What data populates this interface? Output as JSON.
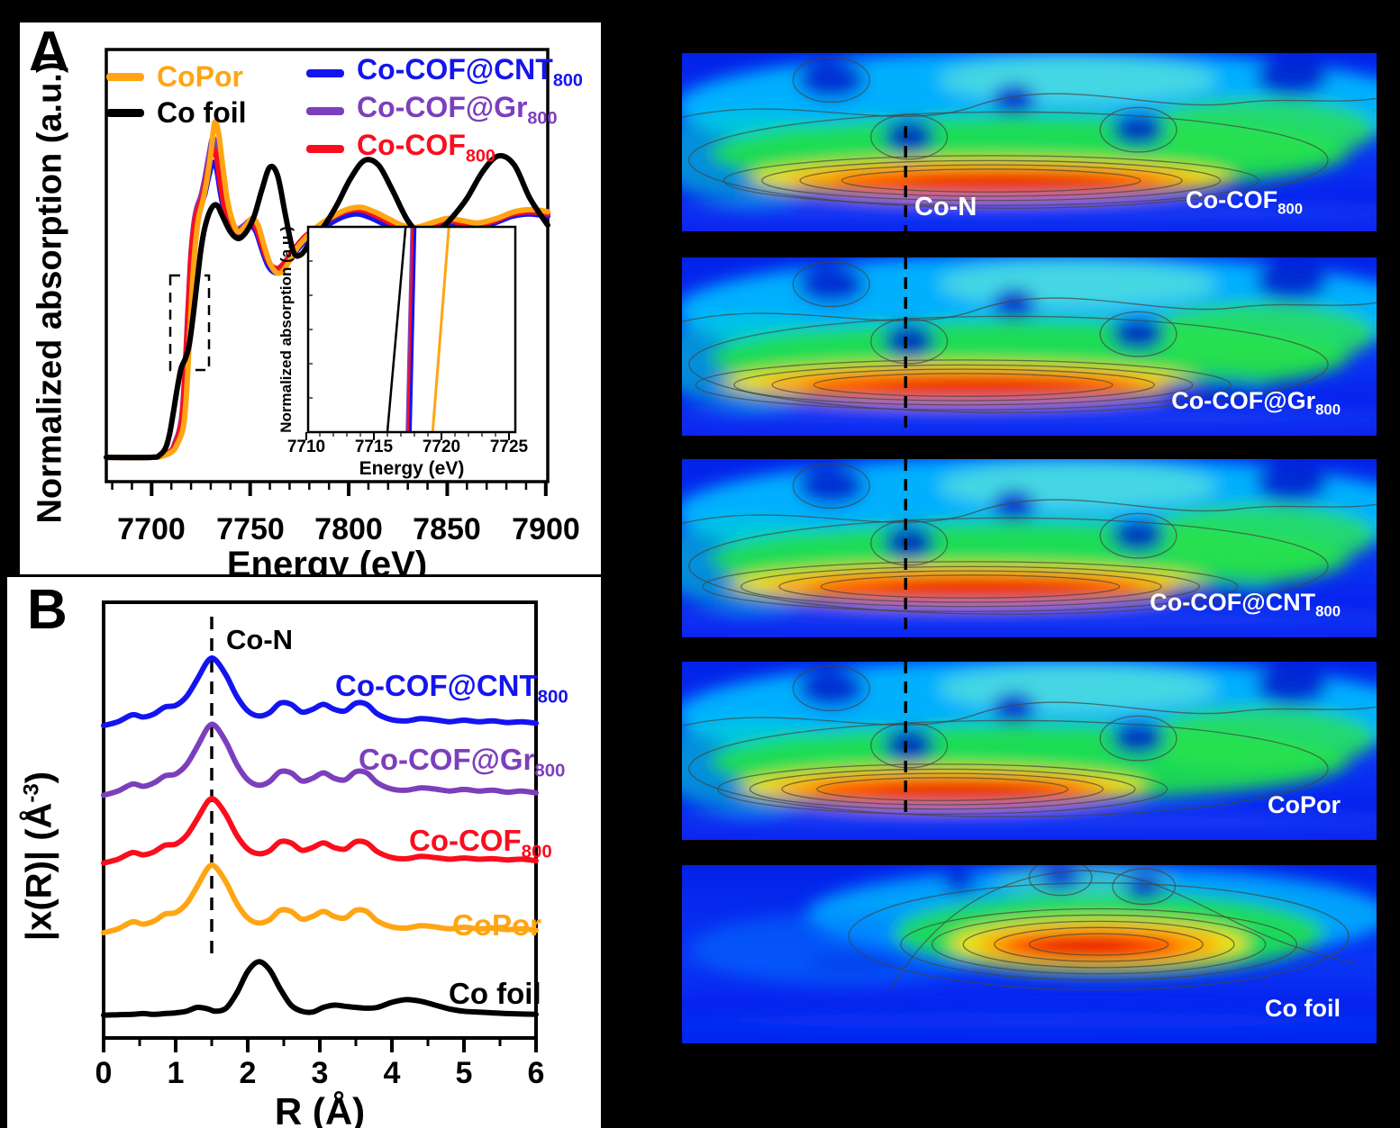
{
  "figure": {
    "panel_a_label": "A",
    "panel_b_label": "B"
  },
  "colors": {
    "copor": "#FFA513",
    "co_foil": "#000000",
    "cnt": "#1414F0",
    "gr": "#7C3FBC",
    "cof": "#FB0D1D",
    "white": "#FFFFFF"
  },
  "panelA": {
    "y_label": "Normalized absorption (a.u.)",
    "x_label": "Energy (eV)",
    "x_ticks": [
      "7700",
      "7750",
      "7800",
      "7850",
      "7900"
    ],
    "legend_left": [
      {
        "label": "CoPor",
        "color": "copor"
      },
      {
        "label": "Co foil",
        "color": "co_foil"
      }
    ],
    "legend_right": [
      {
        "main": "Co-COF@CNT",
        "sub": "800",
        "color": "cnt"
      },
      {
        "main": "Co-COF@Gr",
        "sub": "800",
        "color": "gr"
      },
      {
        "main": "Co-COF",
        "sub": "800",
        "color": "cof"
      }
    ],
    "inset": {
      "y_label": "Normalized absorption (a.u.)",
      "x_label": "Energy (eV)",
      "x_ticks": [
        "7710",
        "7715",
        "7720",
        "7725"
      ]
    }
  },
  "panelB": {
    "y_label_prefix": "|x(R)| (Å",
    "y_label_sup": "-3",
    "y_label_suffix": ")",
    "x_label": "R (Å)",
    "x_ticks": [
      "0",
      "1",
      "2",
      "3",
      "4",
      "5",
      "6"
    ],
    "dash_label": "Co-N",
    "series_labels": [
      {
        "main": "Co-COF@CNT",
        "sub": "800",
        "color": "cnt"
      },
      {
        "main": "Co-COF@Gr",
        "sub": "800",
        "color": "gr"
      },
      {
        "main": "Co-COF",
        "sub": "800",
        "color": "cof"
      },
      {
        "main": "CoPor",
        "sub": "",
        "color": "copor"
      },
      {
        "main": "Co foil",
        "sub": "",
        "color": "co_foil"
      }
    ]
  },
  "contour_column": {
    "dash_label": "Co-N",
    "panels": [
      {
        "main": "Co-COF",
        "sub": "800"
      },
      {
        "main": "Co-COF@Gr",
        "sub": "800"
      },
      {
        "main": "Co-COF@CNT",
        "sub": "800"
      },
      {
        "main": "CoPor",
        "sub": ""
      },
      {
        "main": "Co foil",
        "sub": ""
      }
    ]
  },
  "chart_data": [
    {
      "id": "xanes_main",
      "type": "line",
      "xlabel": "Energy (eV)",
      "ylabel": "Normalized absorption (a.u.)",
      "xlim": [
        7677,
        7901
      ],
      "ylim": [
        0,
        1.85
      ],
      "grid": false,
      "series": [
        {
          "name": "Co-COF@CNT800",
          "color": "cnt",
          "x": [
            7677,
            7700,
            7706,
            7710,
            7712,
            7714,
            7715.5,
            7717,
            7718,
            7719,
            7720,
            7721.5,
            7723,
            7725,
            7727,
            7729,
            7731,
            7733,
            7735,
            7737.5,
            7740,
            7743,
            7747,
            7750,
            7753,
            7756,
            7759,
            7762,
            7765,
            7769,
            7773,
            7778,
            7784,
            7791,
            7798,
            7805,
            7812,
            7819,
            7826,
            7833,
            7841,
            7849,
            7857,
            7865,
            7874,
            7883,
            7892,
            7901
          ],
          "y": [
            0.02,
            0.02,
            0.03,
            0.05,
            0.08,
            0.12,
            0.18,
            0.36,
            0.55,
            0.73,
            0.9,
            1.03,
            1.1,
            1.15,
            1.2,
            1.28,
            1.34,
            1.31,
            1.2,
            1.1,
            1.04,
            1.02,
            1.04,
            1.06,
            1.03,
            0.95,
            0.88,
            0.85,
            0.85,
            0.89,
            0.94,
            0.99,
            1.03,
            1.07,
            1.1,
            1.11,
            1.09,
            1.06,
            1.04,
            1.03,
            1.05,
            1.07,
            1.06,
            1.05,
            1.07,
            1.1,
            1.11,
            1.1
          ]
        },
        {
          "name": "Co-COF@Gr800",
          "color": "gr",
          "x": [
            7677,
            7700,
            7706,
            7710,
            7712,
            7714,
            7715.5,
            7717,
            7718,
            7719,
            7720,
            7721.5,
            7723,
            7725,
            7727,
            7729,
            7731,
            7733,
            7735,
            7737.5,
            7740,
            7743,
            7747,
            7750,
            7753,
            7756,
            7759,
            7762,
            7765,
            7769,
            7773,
            7778,
            7784,
            7791,
            7798,
            7805,
            7812,
            7819,
            7826,
            7833,
            7841,
            7849,
            7857,
            7865,
            7874,
            7883,
            7892,
            7901
          ],
          "y": [
            0.02,
            0.02,
            0.03,
            0.05,
            0.09,
            0.14,
            0.22,
            0.42,
            0.6,
            0.78,
            0.94,
            1.07,
            1.14,
            1.19,
            1.27,
            1.37,
            1.45,
            1.4,
            1.27,
            1.14,
            1.07,
            1.04,
            1.06,
            1.08,
            1.05,
            0.97,
            0.9,
            0.87,
            0.87,
            0.91,
            0.96,
            1.01,
            1.05,
            1.09,
            1.12,
            1.13,
            1.11,
            1.08,
            1.05,
            1.04,
            1.06,
            1.08,
            1.07,
            1.06,
            1.08,
            1.11,
            1.12,
            1.11
          ]
        },
        {
          "name": "Co-COF800",
          "color": "cof",
          "x": [
            7677,
            7700,
            7706,
            7710,
            7712,
            7714,
            7715.5,
            7717,
            7718,
            7719,
            7720,
            7721.5,
            7723,
            7725,
            7727,
            7729,
            7731,
            7733,
            7735,
            7737.5,
            7740,
            7743,
            7747,
            7750,
            7753,
            7756,
            7759,
            7762,
            7765,
            7769,
            7773,
            7778,
            7784,
            7791,
            7798,
            7805,
            7812,
            7819,
            7826,
            7833,
            7841,
            7849,
            7857,
            7865,
            7874,
            7883,
            7892,
            7901
          ],
          "y": [
            0.02,
            0.02,
            0.03,
            0.05,
            0.08,
            0.13,
            0.2,
            0.4,
            0.58,
            0.76,
            0.92,
            1.05,
            1.12,
            1.17,
            1.24,
            1.33,
            1.4,
            1.36,
            1.24,
            1.12,
            1.06,
            1.03,
            1.05,
            1.08,
            1.05,
            0.97,
            0.9,
            0.87,
            0.87,
            0.91,
            0.96,
            1.01,
            1.05,
            1.09,
            1.12,
            1.13,
            1.11,
            1.08,
            1.05,
            1.04,
            1.06,
            1.08,
            1.07,
            1.06,
            1.08,
            1.11,
            1.12,
            1.11
          ]
        },
        {
          "name": "CoPor",
          "color": "copor",
          "x": [
            7677,
            7700,
            7707,
            7711,
            7713,
            7715,
            7716.5,
            7718,
            7719,
            7720,
            7721,
            7722.5,
            7724,
            7726,
            7728,
            7730,
            7732,
            7734,
            7736,
            7738.5,
            7741,
            7744,
            7748,
            7751,
            7754,
            7757,
            7760,
            7763,
            7766,
            7770,
            7774,
            7779,
            7785,
            7792,
            7799,
            7806,
            7813,
            7820,
            7827,
            7834,
            7842,
            7850,
            7858,
            7866,
            7875,
            7884,
            7893,
            7901
          ],
          "y": [
            0.02,
            0.02,
            0.03,
            0.05,
            0.08,
            0.12,
            0.18,
            0.35,
            0.52,
            0.68,
            0.84,
            1.0,
            1.1,
            1.17,
            1.26,
            1.38,
            1.52,
            1.47,
            1.33,
            1.17,
            1.08,
            1.03,
            1.06,
            1.09,
            1.06,
            0.97,
            0.89,
            0.85,
            0.85,
            0.9,
            0.96,
            1.01,
            1.06,
            1.1,
            1.13,
            1.14,
            1.12,
            1.09,
            1.06,
            1.05,
            1.07,
            1.09,
            1.08,
            1.07,
            1.09,
            1.12,
            1.13,
            1.12
          ]
        },
        {
          "name": "Co foil",
          "color": "co_foil",
          "x": [
            7677,
            7700,
            7704,
            7707,
            7709,
            7711,
            7713,
            7715,
            7717,
            7719,
            7721,
            7723,
            7725,
            7727,
            7730,
            7733,
            7736,
            7740,
            7744,
            7748,
            7752,
            7756,
            7760,
            7764,
            7768,
            7772,
            7776,
            7781,
            7787,
            7794,
            7801,
            7808,
            7815,
            7822,
            7830,
            7838,
            7845,
            7852,
            7860,
            7868,
            7876,
            7884,
            7892,
            7901
          ],
          "y": [
            0.02,
            0.02,
            0.03,
            0.06,
            0.12,
            0.22,
            0.33,
            0.42,
            0.46,
            0.52,
            0.65,
            0.8,
            0.95,
            1.05,
            1.13,
            1.15,
            1.1,
            1.03,
            1.0,
            1.03,
            1.1,
            1.22,
            1.32,
            1.28,
            1.1,
            0.94,
            0.93,
            0.99,
            1.05,
            1.15,
            1.27,
            1.35,
            1.33,
            1.22,
            1.08,
            1.01,
            1.03,
            1.09,
            1.18,
            1.3,
            1.37,
            1.33,
            1.18,
            1.06
          ]
        }
      ]
    },
    {
      "id": "xanes_inset",
      "type": "line",
      "xlabel": "Energy (eV)",
      "ylabel": "Normalized absorption (a.u.)",
      "xlim": [
        7710,
        7725.5
      ],
      "ylim": [
        0,
        1
      ],
      "grid": false,
      "series": [
        {
          "name": "Co foil",
          "color": "co_foil",
          "x": [
            7716.0,
            7717.35
          ],
          "y": [
            0,
            1
          ]
        },
        {
          "name": "Co-COF@Gr800",
          "color": "gr",
          "x": [
            7717.45,
            7717.8
          ],
          "y": [
            0,
            1
          ]
        },
        {
          "name": "Co-COF800",
          "color": "cof",
          "x": [
            7717.55,
            7717.9
          ],
          "y": [
            0,
            1
          ]
        },
        {
          "name": "Co-COF@CNT800",
          "color": "cnt",
          "x": [
            7717.7,
            7718.05
          ],
          "y": [
            0,
            1
          ]
        },
        {
          "name": "CoPor",
          "color": "copor",
          "x": [
            7719.35,
            7720.55
          ],
          "y": [
            0,
            1
          ]
        }
      ]
    },
    {
      "id": "exafs_fт",
      "type": "line",
      "xlabel": "R (Å)",
      "ylabel": "|x(R)| (A^-3)",
      "xlim": [
        0,
        6
      ],
      "ylim": [
        0,
        1.12
      ],
      "grid": false,
      "annotation": "Co-N dashed reference line at R = 1.5 Å",
      "x": [
        0,
        0.2,
        0.4,
        0.55,
        0.7,
        0.85,
        1.0,
        1.15,
        1.3,
        1.45,
        1.55,
        1.7,
        1.85,
        2.0,
        2.15,
        2.3,
        2.45,
        2.6,
        2.75,
        2.9,
        3.05,
        3.2,
        3.35,
        3.5,
        3.65,
        3.8,
        4.0,
        4.2,
        4.4,
        4.6,
        4.8,
        5.0,
        5.2,
        5.4,
        5.6,
        5.8,
        6.0
      ],
      "series": [
        {
          "name": "Co-COF@CNT800",
          "color": "cnt",
          "offset": 0.8,
          "y": [
            0.8,
            0.81,
            0.828,
            0.822,
            0.83,
            0.848,
            0.852,
            0.875,
            0.92,
            0.968,
            0.97,
            0.93,
            0.875,
            0.838,
            0.825,
            0.833,
            0.858,
            0.855,
            0.835,
            0.842,
            0.855,
            0.842,
            0.838,
            0.858,
            0.855,
            0.83,
            0.815,
            0.812,
            0.818,
            0.815,
            0.81,
            0.814,
            0.81,
            0.812,
            0.808,
            0.81,
            0.806
          ]
        },
        {
          "name": "Co-COF@Gr800",
          "color": "gr",
          "offset": 0.62,
          "y": [
            0.62,
            0.631,
            0.649,
            0.643,
            0.652,
            0.67,
            0.675,
            0.699,
            0.746,
            0.796,
            0.799,
            0.757,
            0.699,
            0.66,
            0.646,
            0.655,
            0.681,
            0.678,
            0.657,
            0.664,
            0.678,
            0.664,
            0.66,
            0.681,
            0.678,
            0.652,
            0.636,
            0.633,
            0.639,
            0.636,
            0.631,
            0.635,
            0.631,
            0.633,
            0.628,
            0.631,
            0.626
          ]
        },
        {
          "name": "Co-COF800",
          "color": "cof",
          "offset": 0.445,
          "y": [
            0.445,
            0.455,
            0.472,
            0.466,
            0.474,
            0.491,
            0.494,
            0.516,
            0.559,
            0.605,
            0.607,
            0.569,
            0.516,
            0.481,
            0.469,
            0.476,
            0.5,
            0.497,
            0.478,
            0.485,
            0.497,
            0.485,
            0.481,
            0.5,
            0.497,
            0.474,
            0.459,
            0.456,
            0.462,
            0.459,
            0.455,
            0.458,
            0.455,
            0.456,
            0.453,
            0.455,
            0.451
          ]
        },
        {
          "name": "CoPor",
          "color": "copor",
          "offset": 0.265,
          "y": [
            0.265,
            0.275,
            0.293,
            0.287,
            0.295,
            0.313,
            0.317,
            0.34,
            0.385,
            0.433,
            0.435,
            0.395,
            0.34,
            0.303,
            0.29,
            0.298,
            0.323,
            0.32,
            0.3,
            0.307,
            0.32,
            0.307,
            0.303,
            0.323,
            0.32,
            0.295,
            0.28,
            0.277,
            0.283,
            0.28,
            0.275,
            0.279,
            0.275,
            0.277,
            0.273,
            0.275,
            0.271
          ]
        },
        {
          "name": "Co foil",
          "color": "co_foil",
          "offset": 0.05,
          "y": [
            0.052,
            0.053,
            0.054,
            0.056,
            0.054,
            0.056,
            0.058,
            0.062,
            0.072,
            0.068,
            0.062,
            0.07,
            0.11,
            0.165,
            0.19,
            0.17,
            0.12,
            0.078,
            0.062,
            0.06,
            0.072,
            0.078,
            0.075,
            0.072,
            0.07,
            0.072,
            0.085,
            0.092,
            0.088,
            0.078,
            0.068,
            0.062,
            0.06,
            0.058,
            0.056,
            0.055,
            0.054
          ]
        }
      ]
    },
    {
      "id": "wt_exafs_maps",
      "type": "heatmap",
      "description": "Wavelet-transform EXAFS contour maps, rainbow colormap (blue low to red high), intensity maximum near the Co-N distance for all samples except Co foil (Co-Co maximum shifted right)",
      "panels": [
        "Co-COF800",
        "Co-COF@Gr800",
        "Co-COF@CNT800",
        "CoPor",
        "Co foil"
      ],
      "annotation": "Co-N",
      "colormap": "jet"
    }
  ]
}
